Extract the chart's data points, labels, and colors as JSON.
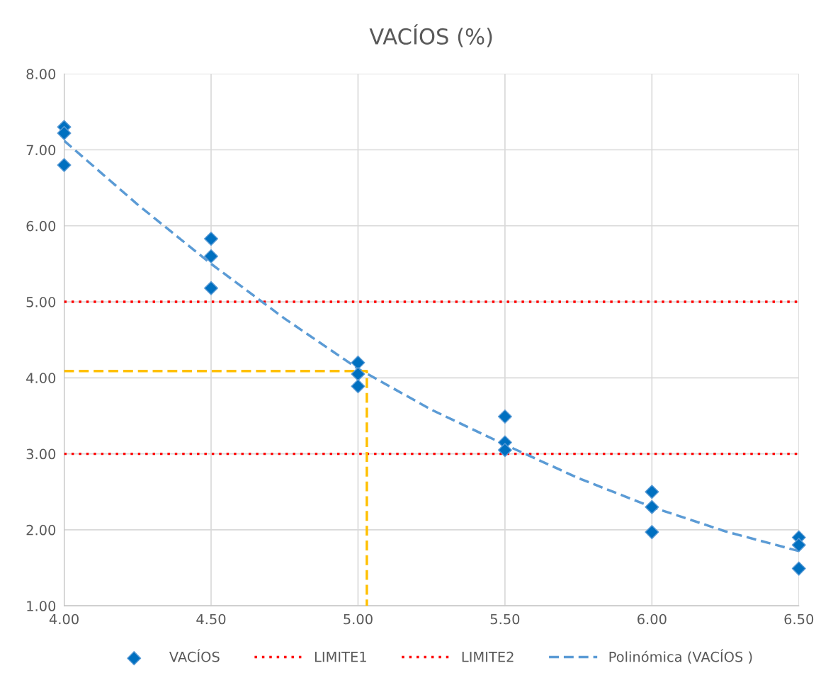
{
  "chart_data": {
    "type": "scatter",
    "title": "VACÍOS (%)",
    "xlim": [
      4.0,
      6.5
    ],
    "xticks": [
      {
        "value": 4.0,
        "label": "4.00"
      },
      {
        "value": 4.5,
        "label": "4.50"
      },
      {
        "value": 5.0,
        "label": "5.00"
      },
      {
        "value": 5.5,
        "label": "5.50"
      },
      {
        "value": 6.0,
        "label": "6.00"
      },
      {
        "value": 6.5,
        "label": "6.50"
      }
    ],
    "ylim": [
      1.0,
      8.0
    ],
    "yticks": [
      {
        "value": 1,
        "label": "1.00"
      },
      {
        "value": 2,
        "label": "2.00"
      },
      {
        "value": 3,
        "label": "3.00"
      },
      {
        "value": 4,
        "label": "4.00"
      },
      {
        "value": 5,
        "label": "5.00"
      },
      {
        "value": 6,
        "label": "6.00"
      },
      {
        "value": 7,
        "label": "7.00"
      },
      {
        "value": 8,
        "label": "8.00"
      }
    ],
    "grid": true,
    "legend": "bottom",
    "series": [
      {
        "name": "VACÍOS",
        "marker": "diamond",
        "color": "#0070c0",
        "x": [
          4.0,
          4.0,
          4.0,
          4.5,
          4.5,
          4.5,
          5.0,
          5.0,
          5.0,
          5.5,
          5.5,
          5.5,
          6.0,
          6.0,
          6.0,
          6.5,
          6.5,
          6.5
        ],
        "values": [
          7.3,
          7.22,
          6.8,
          5.83,
          5.6,
          5.18,
          4.2,
          4.05,
          3.89,
          3.49,
          3.15,
          3.05,
          2.5,
          2.3,
          1.97,
          1.9,
          1.8,
          1.49
        ]
      },
      {
        "name": "LIMITE1",
        "type": "line",
        "line_style": "dotted",
        "color": "#ff0000",
        "x": [
          4.0,
          6.5
        ],
        "values": [
          5.0,
          5.0
        ]
      },
      {
        "name": "LIMITE2",
        "type": "line",
        "line_style": "dotted",
        "color": "#ff0000",
        "x": [
          4.0,
          6.5
        ],
        "values": [
          3.0,
          3.0
        ]
      },
      {
        "name": "Polinómica (VACÍOS )",
        "type": "line",
        "line_style": "dashed",
        "color": "#5b9bd5",
        "x": [
          4.0,
          4.25,
          4.5,
          4.75,
          5.0,
          5.25,
          5.5,
          5.75,
          6.0,
          6.25,
          6.5
        ],
        "values": [
          7.12,
          6.28,
          5.5,
          4.78,
          4.12,
          3.58,
          3.12,
          2.68,
          2.3,
          1.98,
          1.72
        ]
      },
      {
        "type": "line",
        "line_style": "dashed",
        "color": "#ffc000",
        "x": [
          4.0,
          5.03,
          5.03
        ],
        "values": [
          4.09,
          4.09,
          1.0
        ]
      }
    ]
  }
}
